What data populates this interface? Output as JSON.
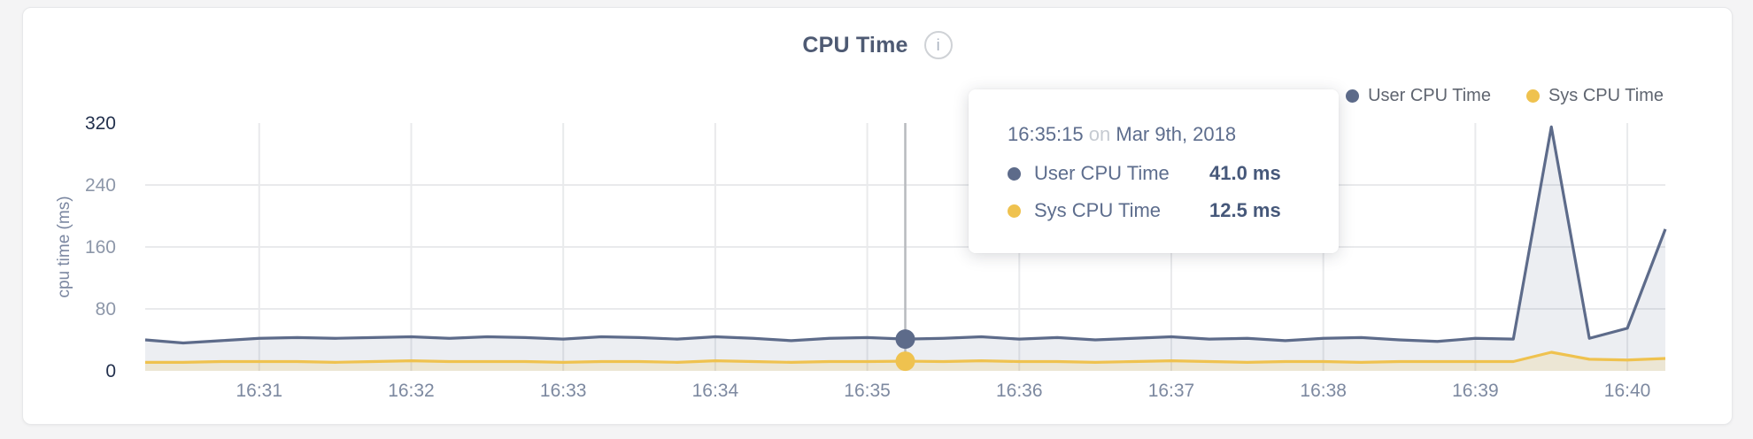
{
  "header": {
    "title": "CPU Time",
    "info_glyph": "i"
  },
  "legend": {
    "items": [
      {
        "label": "User CPU Time",
        "color": "#5d6b8a"
      },
      {
        "label": "Sys CPU Time",
        "color": "#efc24f"
      }
    ]
  },
  "tooltip": {
    "time": "16:35:15",
    "connector": "on",
    "date": "Mar 9th, 2018",
    "rows": [
      {
        "label": "User CPU Time",
        "value": "41.0 ms",
        "color": "#5d6b8a"
      },
      {
        "label": "Sys CPU Time",
        "value": "12.5 ms",
        "color": "#efc24f"
      }
    ]
  },
  "colors": {
    "grid": "#e9eaec",
    "crosshair": "#b7babe",
    "tick_minor": "#8d97a9",
    "tick_edge": "#22304d",
    "x_tick": "#7d89a0",
    "axis_title": "#7b87a1"
  },
  "chart_data": {
    "type": "area",
    "title": "CPU Time",
    "ylabel": "cpu time (ms)",
    "ylim": [
      0,
      320
    ],
    "y_ticks": [
      0,
      80,
      160,
      240,
      320
    ],
    "x_tick_labels": [
      "16:31",
      "16:32",
      "16:33",
      "16:34",
      "16:35",
      "16:36",
      "16:37",
      "16:38",
      "16:39",
      "16:40"
    ],
    "x_start": "16:30:15",
    "x_end": "16:40:15",
    "interval_seconds": 15,
    "first_tick_offset_seconds": 45,
    "tick_spacing_seconds": 60,
    "date": "Mar 9th, 2018",
    "grid": true,
    "legend_position": "top-right",
    "series": [
      {
        "name": "User CPU Time",
        "color": "#5d6b8a",
        "fill": "rgba(99,112,144,0.12)",
        "values": [
          40,
          36,
          39,
          42,
          43,
          42,
          43,
          44,
          42,
          44,
          43,
          41,
          44,
          43,
          41,
          44,
          42,
          39,
          42,
          43,
          41,
          42,
          44,
          41,
          43,
          40,
          42,
          44,
          41,
          42,
          39,
          42,
          43,
          40,
          38,
          42,
          41,
          315,
          42,
          55,
          183
        ]
      },
      {
        "name": "Sys CPU Time",
        "color": "#efc24f",
        "fill": "rgba(239,194,79,0.18)",
        "values": [
          11,
          11,
          12,
          12,
          12,
          11,
          12,
          13,
          12,
          12,
          12,
          11,
          12,
          12,
          11,
          13,
          12,
          11,
          12,
          12,
          12.5,
          12,
          13,
          12,
          12,
          11,
          12,
          13,
          12,
          11,
          12,
          12,
          11,
          12,
          12,
          12,
          12,
          24,
          15,
          14,
          16
        ]
      }
    ],
    "hover": {
      "time": "16:35:15",
      "index": 20,
      "values": [
        41.0,
        12.5
      ],
      "unit": "ms"
    }
  }
}
